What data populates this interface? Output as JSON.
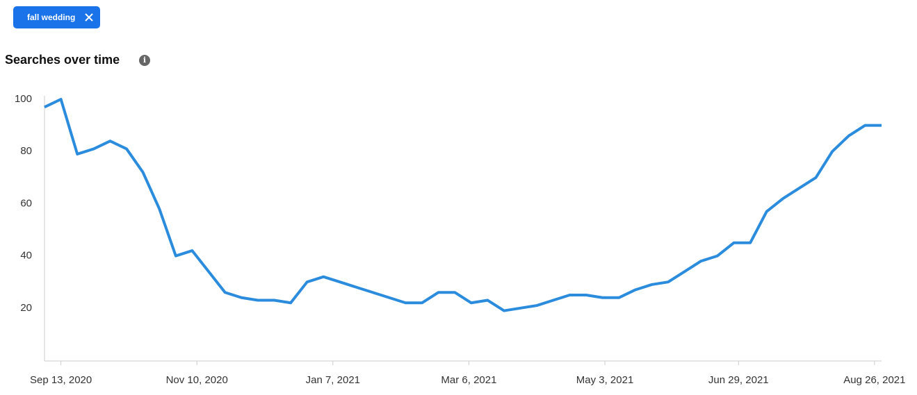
{
  "filter_tag": "fall wedding",
  "chart_data": {
    "type": "line",
    "title": "Searches over time",
    "x": [
      "2020-09-06",
      "2020-09-13",
      "2020-09-20",
      "2020-09-27",
      "2020-10-04",
      "2020-10-11",
      "2020-10-18",
      "2020-10-25",
      "2020-11-01",
      "2020-11-08",
      "2020-11-15",
      "2020-11-22",
      "2020-11-29",
      "2020-12-06",
      "2020-12-13",
      "2020-12-20",
      "2020-12-27",
      "2021-01-03",
      "2021-01-10",
      "2021-01-17",
      "2021-01-24",
      "2021-01-31",
      "2021-02-07",
      "2021-02-14",
      "2021-02-21",
      "2021-02-28",
      "2021-03-07",
      "2021-03-14",
      "2021-03-21",
      "2021-03-28",
      "2021-04-04",
      "2021-04-11",
      "2021-04-18",
      "2021-04-25",
      "2021-05-02",
      "2021-05-09",
      "2021-05-16",
      "2021-05-23",
      "2021-05-30",
      "2021-06-06",
      "2021-06-13",
      "2021-06-20",
      "2021-06-27",
      "2021-07-04",
      "2021-07-11",
      "2021-07-18",
      "2021-07-25",
      "2021-08-01",
      "2021-08-08",
      "2021-08-15",
      "2021-08-22",
      "2021-08-29"
    ],
    "series": [
      {
        "color": "#2b8bdc",
        "values": [
          97,
          100,
          79,
          81,
          84,
          81,
          72,
          58,
          40,
          42,
          34,
          26,
          24,
          23,
          23,
          22,
          30,
          32,
          30,
          28,
          26,
          24,
          22,
          22,
          26,
          26,
          22,
          23,
          19,
          20,
          21,
          23,
          25,
          25,
          24,
          24,
          27,
          29,
          30,
          34,
          38,
          40,
          45,
          45,
          57,
          62,
          66,
          70,
          80,
          86,
          90,
          90
        ]
      }
    ],
    "xlim": [
      "2020-09-06",
      "2021-08-29"
    ],
    "xticks": [
      {
        "value": "2020-09-13",
        "label": "Sep 13, 2020"
      },
      {
        "value": "2020-11-10",
        "label": "Nov 10, 2020"
      },
      {
        "value": "2021-01-07",
        "label": "Jan 7, 2021"
      },
      {
        "value": "2021-03-06",
        "label": "Mar 6, 2021"
      },
      {
        "value": "2021-05-03",
        "label": "May 3, 2021"
      },
      {
        "value": "2021-06-29",
        "label": "Jun 29, 2021"
      },
      {
        "value": "2021-08-26",
        "label": "Aug 26, 2021"
      }
    ],
    "ylim": [
      0,
      100
    ],
    "yticks": [
      20,
      40,
      60,
      80,
      100
    ],
    "grid": false
  }
}
